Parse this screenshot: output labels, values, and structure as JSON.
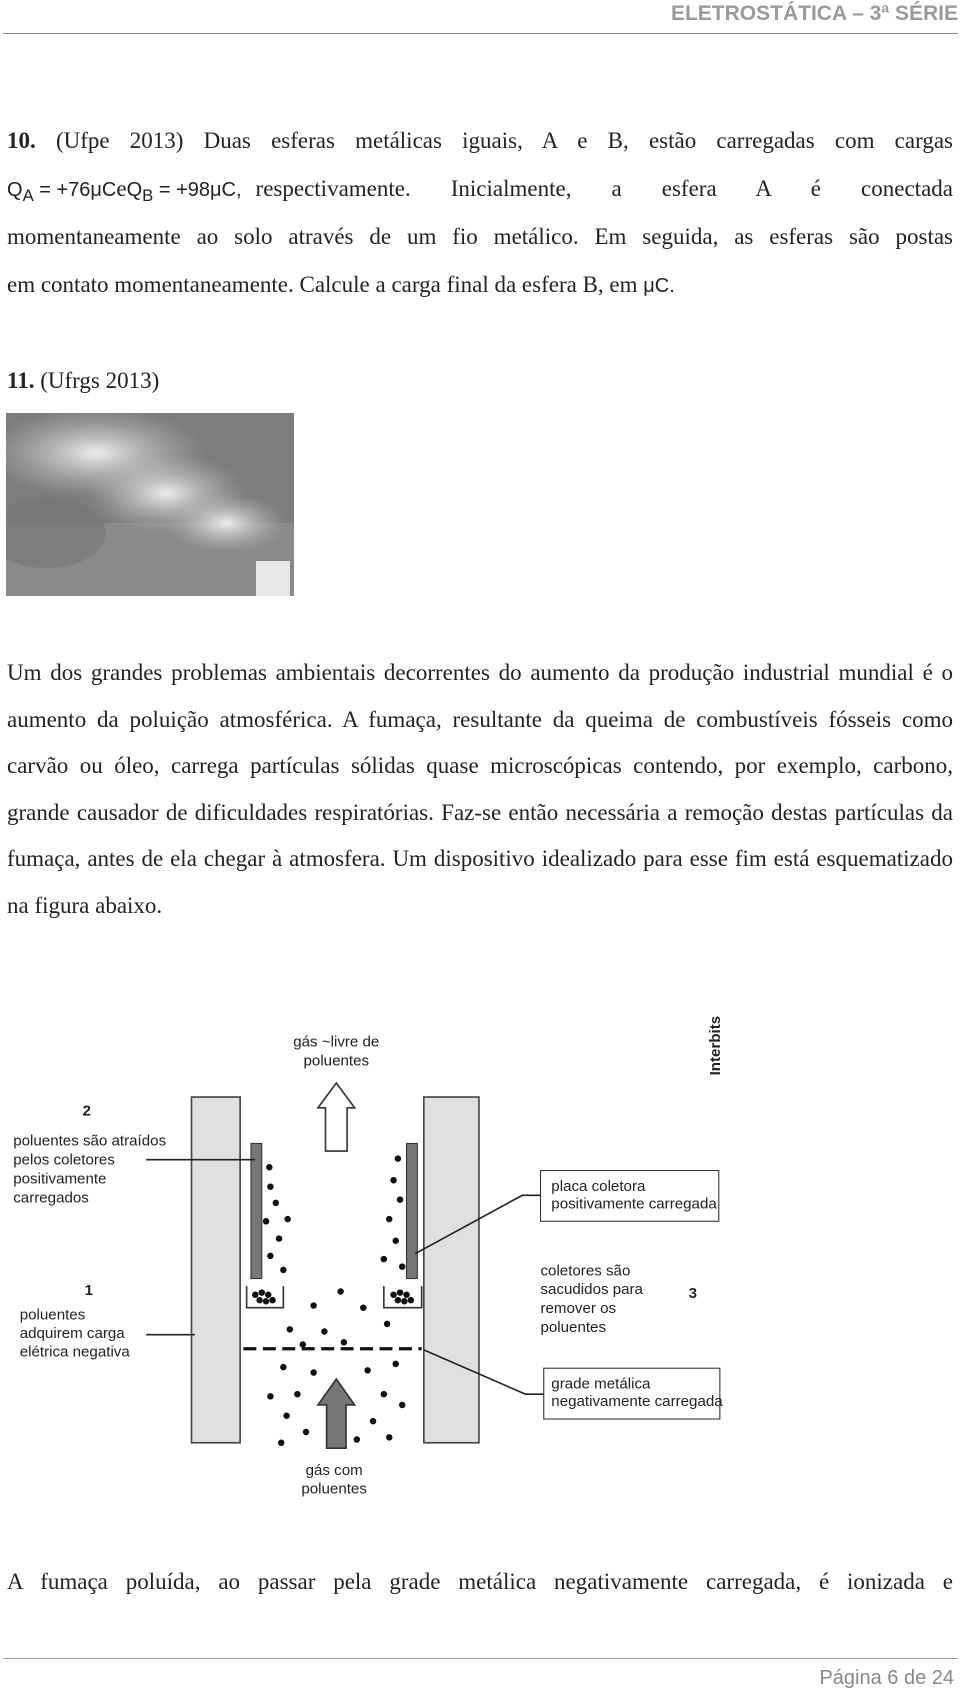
{
  "header": {
    "title": "ELETROSTÁTICA – 3ª SÉRIE"
  },
  "questions": [
    {
      "number": "10.",
      "source": "(Ufpe 2013)",
      "text_1": "Duas esferas metálicas iguais, A e B, estão carregadas com cargas",
      "charge_a": {
        "symbol": "Q",
        "subscript": "A",
        "value": "= +76μC"
      },
      "connector": "e",
      "charge_b": {
        "symbol": "Q",
        "subscript": "B",
        "value": "= +98μC,"
      },
      "text_2": "respectivamente. Inicialmente, a esfera A é conectada",
      "text_3": "momentaneamente ao solo através de um fio metálico. Em seguida, as esferas são postas",
      "text_4": "em contato momentaneamente. Calcule a carga final da esfera B, em",
      "unit": "μC."
    },
    {
      "number": "11.",
      "source": "(Ufrgs 2013)",
      "paragraph_1": "Um dos grandes problemas ambientais decorrentes do aumento da produção industrial mundial é o aumento da poluição atmosférica. A fumaça, resultante da queima de combustíveis fósseis como carvão ou óleo, carrega partículas sólidas quase microscópicas contendo, por exemplo, carbono, grande causador de dificuldades respiratórias. Faz-se então necessária a remoção destas partículas da fumaça, antes de ela chegar à atmosfera. Um dispositivo idealizado para esse fim está esquematizado na figura abaixo.",
      "figure": {
        "top_label": [
          "gás ~livre de",
          "poluentes"
        ],
        "credit": "Interbits®",
        "step_2_number": "2",
        "step_2_label": [
          "poluentes são atraídos",
          "pelos coletores",
          "positivamente",
          "carregados"
        ],
        "step_1_number": "1",
        "step_1_label": [
          "poluentes",
          "adquirem carga",
          "elétrica negativa"
        ],
        "bottom_label": [
          "gás com",
          "poluentes"
        ],
        "plate_label": [
          "placa coletora",
          "positivamente carregada"
        ],
        "step_3_label": [
          "coletores são",
          "sacudidos para",
          "remover os",
          "poluentes"
        ],
        "step_3_number": "3",
        "grid_label": [
          "grade metálica",
          "negativamente carregada"
        ]
      },
      "paragraph_2": "A fumaça poluída, ao passar pela grade metálica negativamente carregada, é ionizada e"
    }
  ],
  "footer": {
    "page": "Página 6 de 24"
  }
}
